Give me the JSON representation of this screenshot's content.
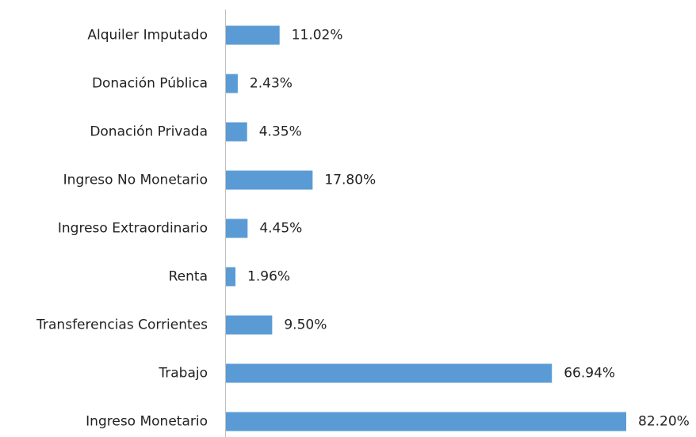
{
  "chart_data": {
    "type": "barh",
    "categories": [
      "Alquiler Imputado",
      "Donación Pública",
      "Donación Privada",
      "Ingreso No Monetario",
      "Ingreso Extraordinario",
      "Renta",
      "Transferencias Corrientes",
      "Trabajo",
      "Ingreso Monetario"
    ],
    "values": [
      11.02,
      2.43,
      4.35,
      17.8,
      4.45,
      1.96,
      9.5,
      66.94,
      82.2
    ],
    "value_labels": [
      "11.02%",
      "2.43%",
      "4.35%",
      "17.80%",
      "4.45%",
      "1.96%",
      "9.50%",
      "66.94%",
      "82.20%"
    ],
    "color": "#5b9bd5"
  }
}
